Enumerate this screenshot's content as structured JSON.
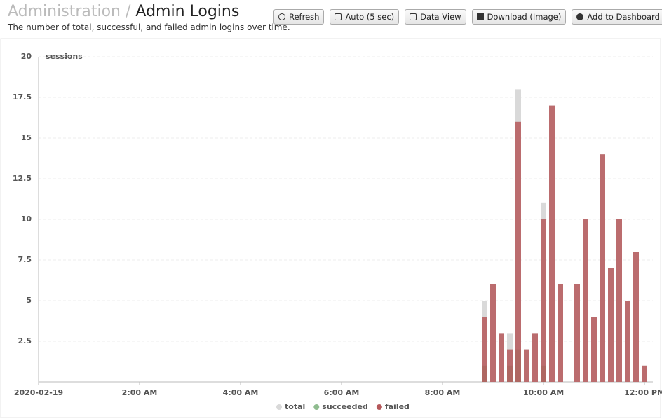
{
  "header": {
    "breadcrumb": "Administration",
    "separator": "/",
    "title": "Admin Logins",
    "subtitle": "The number of total, successful, and failed admin logins over time."
  },
  "toolbar": {
    "buttons": [
      "Refresh",
      "Auto (5 sec)",
      "Data View",
      "Download (Image)",
      "Add to Dashboard"
    ]
  },
  "chart_data": {
    "type": "bar",
    "y_label": "sessions",
    "x": [
      530,
      540,
      550,
      560,
      570,
      580,
      590,
      600,
      610,
      620,
      640,
      650,
      660,
      670,
      680,
      690,
      700,
      710,
      720
    ],
    "xlim": [
      0,
      730
    ],
    "xticks": [
      {
        "value": 0,
        "label": "2020-02-19"
      },
      {
        "value": 120,
        "label": "2:00 AM"
      },
      {
        "value": 240,
        "label": "4:00 AM"
      },
      {
        "value": 360,
        "label": "6:00 AM"
      },
      {
        "value": 480,
        "label": "8:00 AM"
      },
      {
        "value": 600,
        "label": "10:00 AM"
      },
      {
        "value": 720,
        "label": "12:00 PM"
      }
    ],
    "ylim": [
      0,
      20
    ],
    "yticks": [
      2.5,
      5,
      7.5,
      10,
      12.5,
      15,
      17.5,
      20
    ],
    "grid": true,
    "legend": "bottom",
    "series": [
      {
        "name": "total",
        "color": "#d9d9d9",
        "values": [
          5,
          6,
          3,
          3,
          18,
          2,
          3,
          11,
          17,
          6,
          6,
          10,
          4,
          14,
          7,
          10,
          5,
          8,
          1
        ]
      },
      {
        "name": "succeeded",
        "color": "#8fbc8f",
        "values": [
          1,
          0,
          0,
          1,
          2,
          0,
          0,
          1,
          0,
          0,
          0,
          0,
          0,
          0,
          0,
          0,
          0,
          0,
          0
        ]
      },
      {
        "name": "failed",
        "color": "#b5585a",
        "values": [
          4,
          6,
          3,
          2,
          16,
          2,
          3,
          10,
          17,
          6,
          6,
          10,
          4,
          14,
          7,
          10,
          5,
          8,
          1
        ]
      }
    ]
  }
}
